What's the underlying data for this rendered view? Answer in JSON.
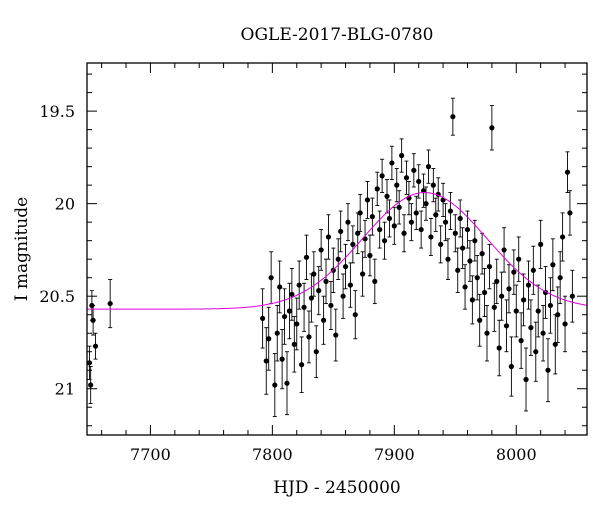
{
  "chart_data": {
    "type": "scatter",
    "title": "OGLE-2017-BLG-0780",
    "xlabel": "HJD - 2450000",
    "ylabel": "I magnitude",
    "xlim": [
      7648,
      8058
    ],
    "ylim": [
      21.25,
      19.24
    ],
    "y_inverted": true,
    "x_ticks": [
      7700,
      7800,
      7900,
      8000
    ],
    "y_ticks": [
      19.5,
      20,
      20.5,
      21
    ],
    "x_tick_labels": [
      "7700",
      "7800",
      "7900",
      "8000"
    ],
    "y_tick_labels": [
      "19.5",
      "20",
      "20.5",
      "21"
    ],
    "minor_x_step": 20,
    "minor_y_step": 0.1,
    "model_color": "#e000e0",
    "point_color": "#000000",
    "model": {
      "baseline_mag": 20.57,
      "peak_mag": 19.94,
      "t0": 7925,
      "width_days": 72
    },
    "series": [
      {
        "points": [
          [
            7650.0,
            20.86,
            0.09
          ],
          [
            7652.0,
            20.55,
            0.08
          ],
          [
            7655.0,
            20.77,
            0.07
          ],
          [
            7651.0,
            20.98,
            0.1
          ],
          [
            7653.0,
            20.63,
            0.08
          ],
          [
            7667.0,
            20.54,
            0.13
          ],
          [
            7792.0,
            20.62,
            0.16
          ],
          [
            7795.0,
            20.85,
            0.18
          ],
          [
            7797.0,
            20.73,
            0.17
          ],
          [
            7799.0,
            20.4,
            0.14
          ],
          [
            7802.0,
            20.98,
            0.17
          ],
          [
            7804.0,
            20.7,
            0.15
          ],
          [
            7806.0,
            20.45,
            0.14
          ],
          [
            7808.0,
            20.84,
            0.16
          ],
          [
            7810.0,
            20.61,
            0.15
          ],
          [
            7812.0,
            20.97,
            0.17
          ],
          [
            7814.0,
            20.58,
            0.15
          ],
          [
            7816.0,
            20.49,
            0.14
          ],
          [
            7818.0,
            20.76,
            0.15
          ],
          [
            7820.0,
            20.65,
            0.14
          ],
          [
            7822.0,
            20.44,
            0.13
          ],
          [
            7824.0,
            20.87,
            0.15
          ],
          [
            7826.0,
            20.56,
            0.13
          ],
          [
            7828.0,
            20.29,
            0.12
          ],
          [
            7830.0,
            20.72,
            0.14
          ],
          [
            7832.0,
            20.51,
            0.13
          ],
          [
            7834.0,
            20.38,
            0.12
          ],
          [
            7836.0,
            20.8,
            0.14
          ],
          [
            7838.0,
            20.47,
            0.13
          ],
          [
            7840.0,
            20.25,
            0.11
          ],
          [
            7842.0,
            20.63,
            0.13
          ],
          [
            7844.0,
            20.42,
            0.12
          ],
          [
            7846.0,
            20.18,
            0.12
          ],
          [
            7848.0,
            20.55,
            0.13
          ],
          [
            7850.0,
            20.36,
            0.12
          ],
          [
            7852.0,
            20.71,
            0.14
          ],
          [
            7854.0,
            20.3,
            0.11
          ],
          [
            7856.0,
            20.15,
            0.11
          ],
          [
            7858.0,
            20.5,
            0.12
          ],
          [
            7860.0,
            20.34,
            0.12
          ],
          [
            7862.0,
            20.1,
            0.1
          ],
          [
            7864.0,
            20.44,
            0.12
          ],
          [
            7866.0,
            20.22,
            0.1
          ],
          [
            7868.0,
            20.6,
            0.13
          ],
          [
            7870.0,
            20.16,
            0.11
          ],
          [
            7872.0,
            20.05,
            0.1
          ],
          [
            7874.0,
            20.38,
            0.12
          ],
          [
            7876.0,
            20.19,
            0.1
          ],
          [
            7878.0,
            19.98,
            0.1
          ],
          [
            7880.0,
            20.28,
            0.11
          ],
          [
            7882.0,
            20.07,
            0.1
          ],
          [
            7884.0,
            20.42,
            0.12
          ],
          [
            7886.0,
            19.92,
            0.09
          ],
          [
            7888.0,
            20.14,
            0.1
          ],
          [
            7890.0,
            19.85,
            0.09
          ],
          [
            7892.0,
            20.2,
            0.1
          ],
          [
            7894.0,
            19.96,
            0.09
          ],
          [
            7896.0,
            20.08,
            0.1
          ],
          [
            7898.0,
            19.78,
            0.09
          ],
          [
            7900.0,
            20.12,
            0.1
          ],
          [
            7902.0,
            19.9,
            0.09
          ],
          [
            7904.0,
            20.02,
            0.09
          ],
          [
            7906.0,
            19.74,
            0.09
          ],
          [
            7908.0,
            20.16,
            0.1
          ],
          [
            7910.0,
            19.86,
            0.09
          ],
          [
            7912.0,
            19.97,
            0.09
          ],
          [
            7914.0,
            20.1,
            0.1
          ],
          [
            7916.0,
            19.82,
            0.09
          ],
          [
            7918.0,
            20.05,
            0.09
          ],
          [
            7920.0,
            19.88,
            0.09
          ],
          [
            7922.0,
            20.14,
            0.1
          ],
          [
            7924.0,
            19.93,
            0.09
          ],
          [
            7926.0,
            20.0,
            0.09
          ],
          [
            7928.0,
            19.8,
            0.09
          ],
          [
            7930.0,
            20.18,
            0.1
          ],
          [
            7932.0,
            19.9,
            0.09
          ],
          [
            7934.0,
            20.06,
            0.09
          ],
          [
            7936.0,
            19.95,
            0.09
          ],
          [
            7938.0,
            20.22,
            0.1
          ],
          [
            7940.0,
            19.98,
            0.09
          ],
          [
            7942.0,
            20.1,
            0.1
          ],
          [
            7944.0,
            20.3,
            0.11
          ],
          [
            7946.0,
            20.04,
            0.1
          ],
          [
            7948.0,
            19.53,
            0.1
          ],
          [
            7950.0,
            20.16,
            0.1
          ],
          [
            7952.0,
            20.36,
            0.12
          ],
          [
            7954.0,
            20.08,
            0.1
          ],
          [
            7956.0,
            20.24,
            0.11
          ],
          [
            7958.0,
            20.45,
            0.12
          ],
          [
            7960.0,
            20.14,
            0.1
          ],
          [
            7962.0,
            20.31,
            0.11
          ],
          [
            7964.0,
            20.52,
            0.13
          ],
          [
            7966.0,
            20.2,
            0.11
          ],
          [
            7968.0,
            20.4,
            0.12
          ],
          [
            7970.0,
            20.63,
            0.14
          ],
          [
            7972.0,
            20.27,
            0.11
          ],
          [
            7974.0,
            20.48,
            0.13
          ],
          [
            7976.0,
            20.7,
            0.15
          ],
          [
            7978.0,
            20.34,
            0.12
          ],
          [
            7980.0,
            19.59,
            0.12
          ],
          [
            7982.0,
            20.56,
            0.13
          ],
          [
            7984.0,
            20.42,
            0.12
          ],
          [
            7986.0,
            20.78,
            0.15
          ],
          [
            7988.0,
            20.5,
            0.13
          ],
          [
            7990.0,
            20.25,
            0.12
          ],
          [
            7992.0,
            20.66,
            0.14
          ],
          [
            7994.0,
            20.46,
            0.13
          ],
          [
            7996.0,
            20.88,
            0.16
          ],
          [
            7998.0,
            20.37,
            0.12
          ],
          [
            8000.0,
            20.58,
            0.14
          ],
          [
            8002.0,
            20.3,
            0.12
          ],
          [
            8004.0,
            20.74,
            0.15
          ],
          [
            8006.0,
            20.52,
            0.14
          ],
          [
            8008.0,
            20.95,
            0.17
          ],
          [
            8010.0,
            20.44,
            0.13
          ],
          [
            8012.0,
            20.67,
            0.15
          ],
          [
            8014.0,
            20.36,
            0.13
          ],
          [
            8016.0,
            20.8,
            0.16
          ],
          [
            8018.0,
            20.58,
            0.14
          ],
          [
            8020.0,
            20.22,
            0.13
          ],
          [
            8022.0,
            20.7,
            0.15
          ],
          [
            8024.0,
            20.48,
            0.14
          ],
          [
            8026.0,
            20.9,
            0.17
          ],
          [
            8028.0,
            20.55,
            0.15
          ],
          [
            8030.0,
            20.33,
            0.14
          ],
          [
            8032.0,
            20.76,
            0.16
          ],
          [
            8034.0,
            20.6,
            0.15
          ],
          [
            8036.0,
            20.4,
            0.14
          ],
          [
            8038.0,
            20.18,
            0.13
          ],
          [
            8040.0,
            20.65,
            0.15
          ],
          [
            8042.0,
            19.83,
            0.11
          ],
          [
            8044.0,
            20.05,
            0.12
          ],
          [
            8046.0,
            20.5,
            0.14
          ]
        ]
      }
    ]
  }
}
